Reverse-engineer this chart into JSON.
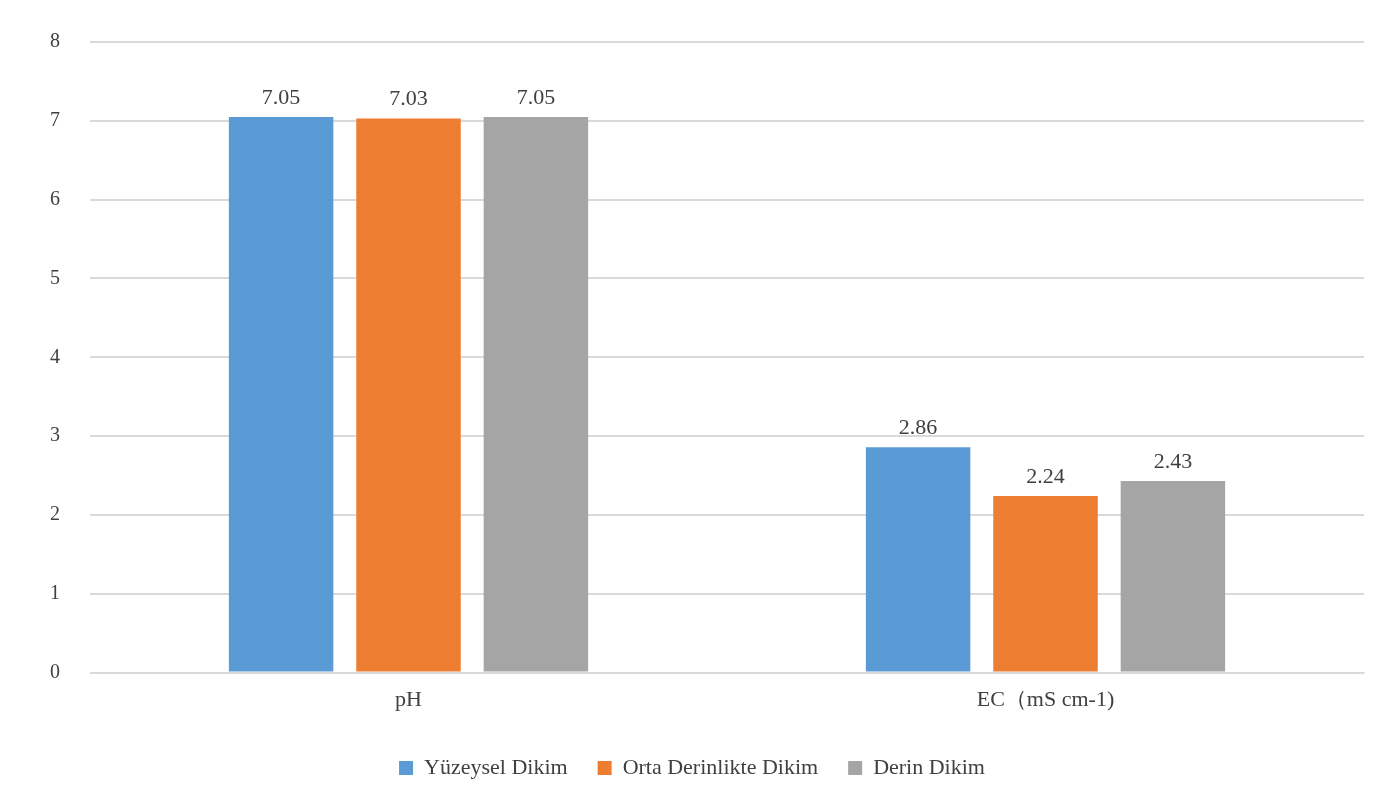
{
  "chart_data": {
    "type": "bar",
    "categories": [
      "pH",
      "EC（mS cm-1)"
    ],
    "series": [
      {
        "name": "Yüzeysel Dikim",
        "color": "#5b9bd5",
        "values": [
          7.05,
          2.86
        ]
      },
      {
        "name": "Orta Derinlikte Dikim",
        "color": "#ed7d31",
        "values": [
          7.03,
          2.24
        ]
      },
      {
        "name": "Derin Dikim",
        "color": "#a5a5a5",
        "values": [
          7.05,
          2.43
        ]
      }
    ],
    "ylim": [
      0,
      8
    ],
    "yticks": [
      0,
      1,
      2,
      3,
      4,
      5,
      6,
      7,
      8
    ],
    "grid": "y",
    "legend": "bottom",
    "data_labels": true
  }
}
